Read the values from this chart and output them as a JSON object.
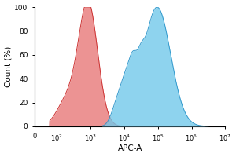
{
  "title": "",
  "xlabel": "APC-A",
  "ylabel": "Count (%)",
  "ylim": [
    0,
    100
  ],
  "yticks": [
    0,
    20,
    40,
    60,
    80,
    100
  ],
  "red_color_fill": "#E87878",
  "red_color_edge": "#CC3333",
  "blue_color_fill": "#72C8EA",
  "blue_color_edge": "#3399CC",
  "background_color": "#FFFFFF",
  "fig_width": 3.0,
  "fig_height": 2.0,
  "dpi": 100
}
